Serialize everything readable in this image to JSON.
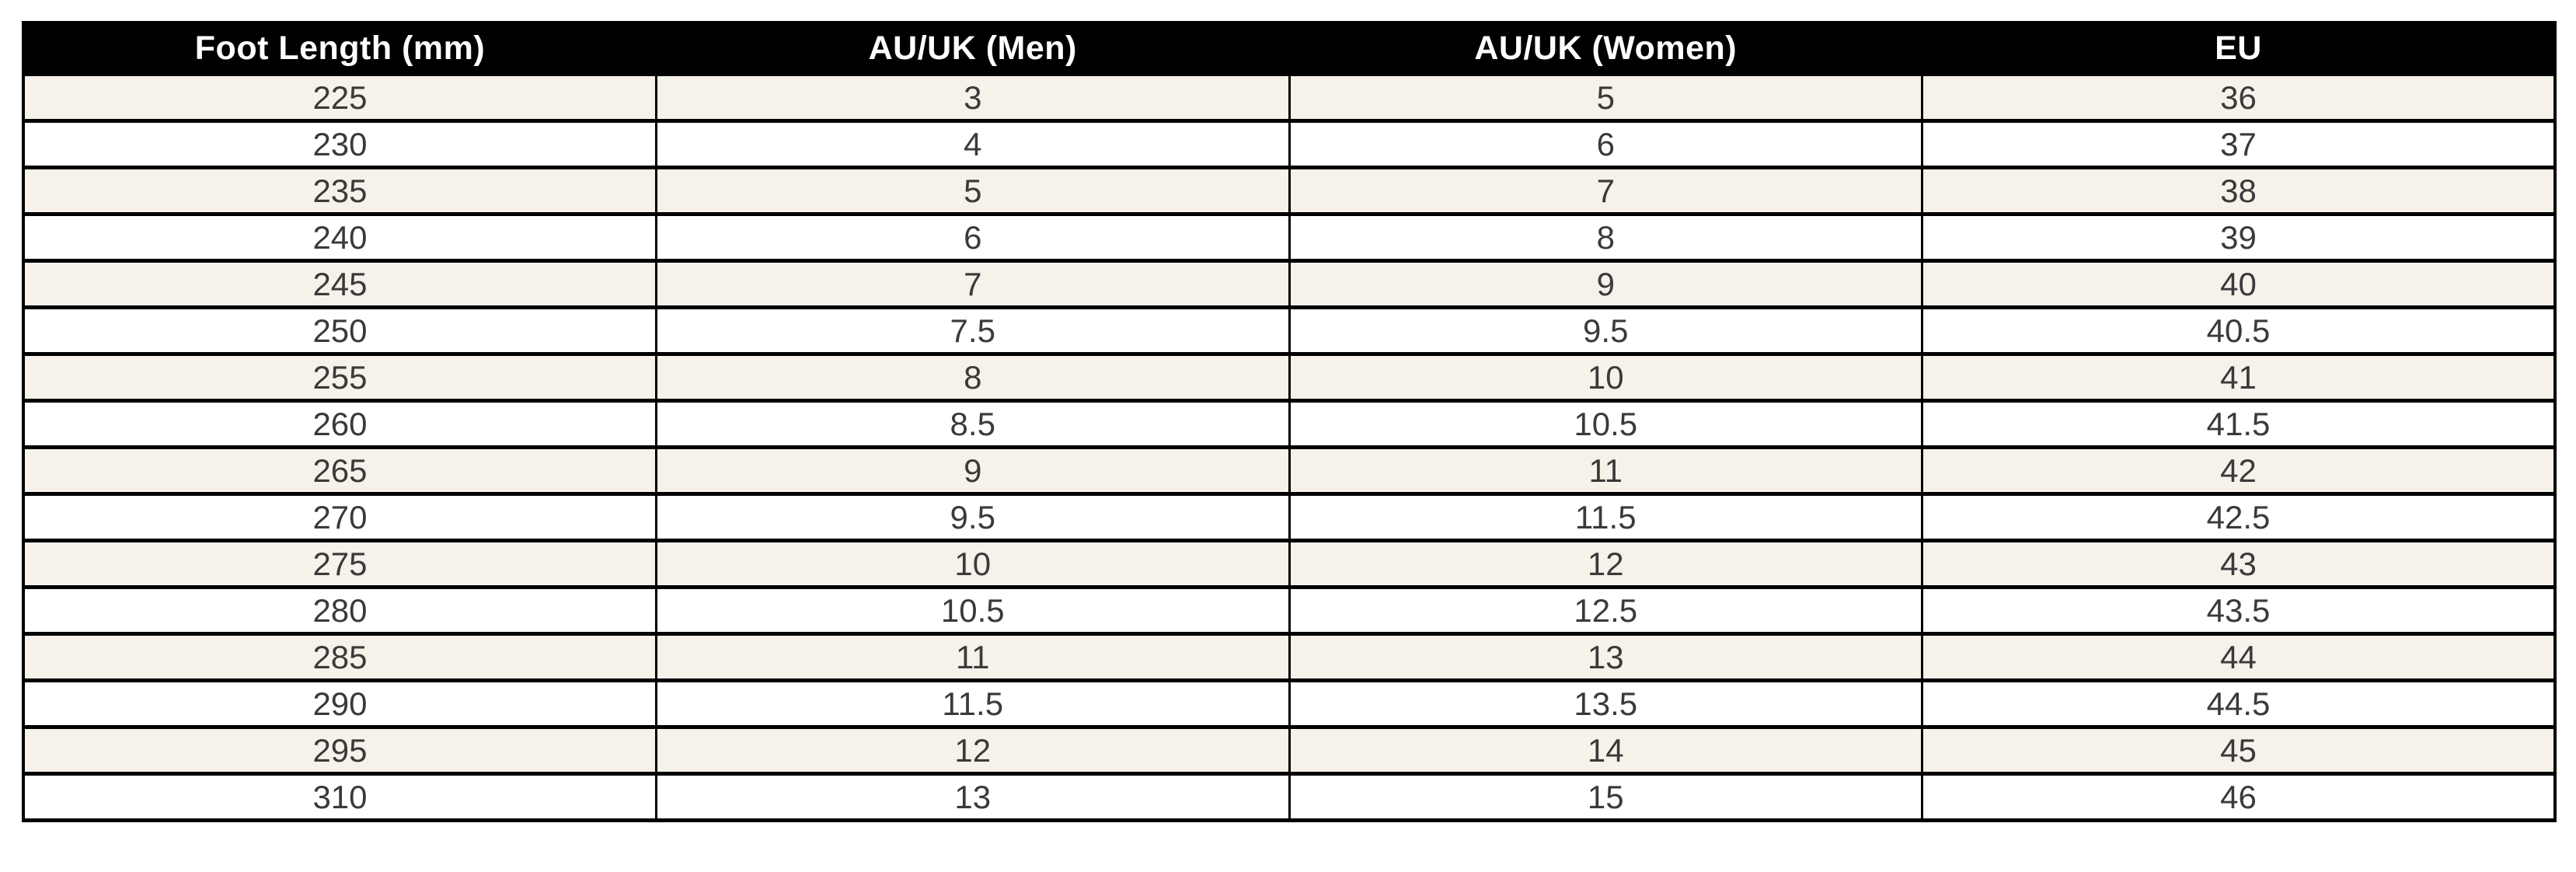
{
  "chart_data": {
    "type": "table",
    "columns": [
      "Foot Length (mm)",
      "AU/UK (Men)",
      "AU/UK (Women)",
      "EU"
    ],
    "rows": [
      [
        "225",
        "3",
        "5",
        "36"
      ],
      [
        "230",
        "4",
        "6",
        "37"
      ],
      [
        "235",
        "5",
        "7",
        "38"
      ],
      [
        "240",
        "6",
        "8",
        "39"
      ],
      [
        "245",
        "7",
        "9",
        "40"
      ],
      [
        "250",
        "7.5",
        "9.5",
        "40.5"
      ],
      [
        "255",
        "8",
        "10",
        "41"
      ],
      [
        "260",
        "8.5",
        "10.5",
        "41.5"
      ],
      [
        "265",
        "9",
        "11",
        "42"
      ],
      [
        "270",
        "9.5",
        "11.5",
        "42.5"
      ],
      [
        "275",
        "10",
        "12",
        "43"
      ],
      [
        "280",
        "10.5",
        "12.5",
        "43.5"
      ],
      [
        "285",
        "11",
        "13",
        "44"
      ],
      [
        "290",
        "11.5",
        "13.5",
        "44.5"
      ],
      [
        "295",
        "12",
        "14",
        "45"
      ],
      [
        "310",
        "13",
        "15",
        "46"
      ]
    ],
    "layout": {
      "legend": "none",
      "grid": "full black cell borders",
      "stripe_pattern": "odd data rows shaded cream, even rows white"
    },
    "colors": {
      "header_bg": "#000000",
      "header_text": "#ffffff",
      "alt_row_bg": "#f6f2ea",
      "row_bg": "#ffffff",
      "border": "#000000",
      "cell_text": "#3a3a3a"
    }
  }
}
